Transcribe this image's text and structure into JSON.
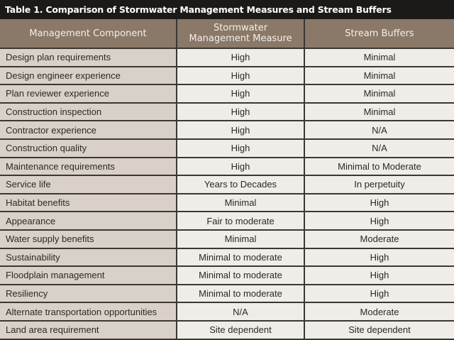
{
  "title": "Table 1. Comparison of Stormwater Management Measures and Stream Buffers",
  "headers": [
    "Management Component",
    "Stormwater Management Measure",
    "Stream Buffers"
  ],
  "rows": [
    {
      "component": "Design plan requirements",
      "stormwater": "High",
      "buffers": "Minimal"
    },
    {
      "component": "Design engineer experience",
      "stormwater": "High",
      "buffers": "Minimal"
    },
    {
      "component": "Plan reviewer experience",
      "stormwater": "High",
      "buffers": "Minimal"
    },
    {
      "component": "Construction inspection",
      "stormwater": "High",
      "buffers": "Minimal"
    },
    {
      "component": "Contractor experience",
      "stormwater": "High",
      "buffers": "N/A"
    },
    {
      "component": "Construction quality",
      "stormwater": "High",
      "buffers": "N/A"
    },
    {
      "component": "Maintenance requirements",
      "stormwater": "High",
      "buffers": "Minimal to Moderate"
    },
    {
      "component": "Service life",
      "stormwater": "Years to Decades",
      "buffers": "In perpetuity"
    },
    {
      "component": "Habitat benefits",
      "stormwater": "Minimal",
      "buffers": "High"
    },
    {
      "component": "Appearance",
      "stormwater": "Fair to moderate",
      "buffers": "High"
    },
    {
      "component": "Water supply benefits",
      "stormwater": "Minimal",
      "buffers": "Moderate"
    },
    {
      "component": "Sustainability",
      "stormwater": "Minimal to moderate",
      "buffers": "High"
    },
    {
      "component": "Floodplain management",
      "stormwater": "Minimal to moderate",
      "buffers": "High"
    },
    {
      "component": "Resiliency",
      "stormwater": "Minimal to moderate",
      "buffers": "High"
    },
    {
      "component": "Alternate transportation opportunities",
      "stormwater": "N/A",
      "buffers": "Moderate"
    },
    {
      "component": "Land area requirement",
      "stormwater": "Site dependent",
      "buffers": "Site dependent"
    }
  ],
  "colors": {
    "title_bg": "#1c1a19",
    "header_bg": "#8a7968",
    "label_bg": "#d9d1c7",
    "value_bg": "#f0ece8",
    "border": "#3b3733"
  }
}
